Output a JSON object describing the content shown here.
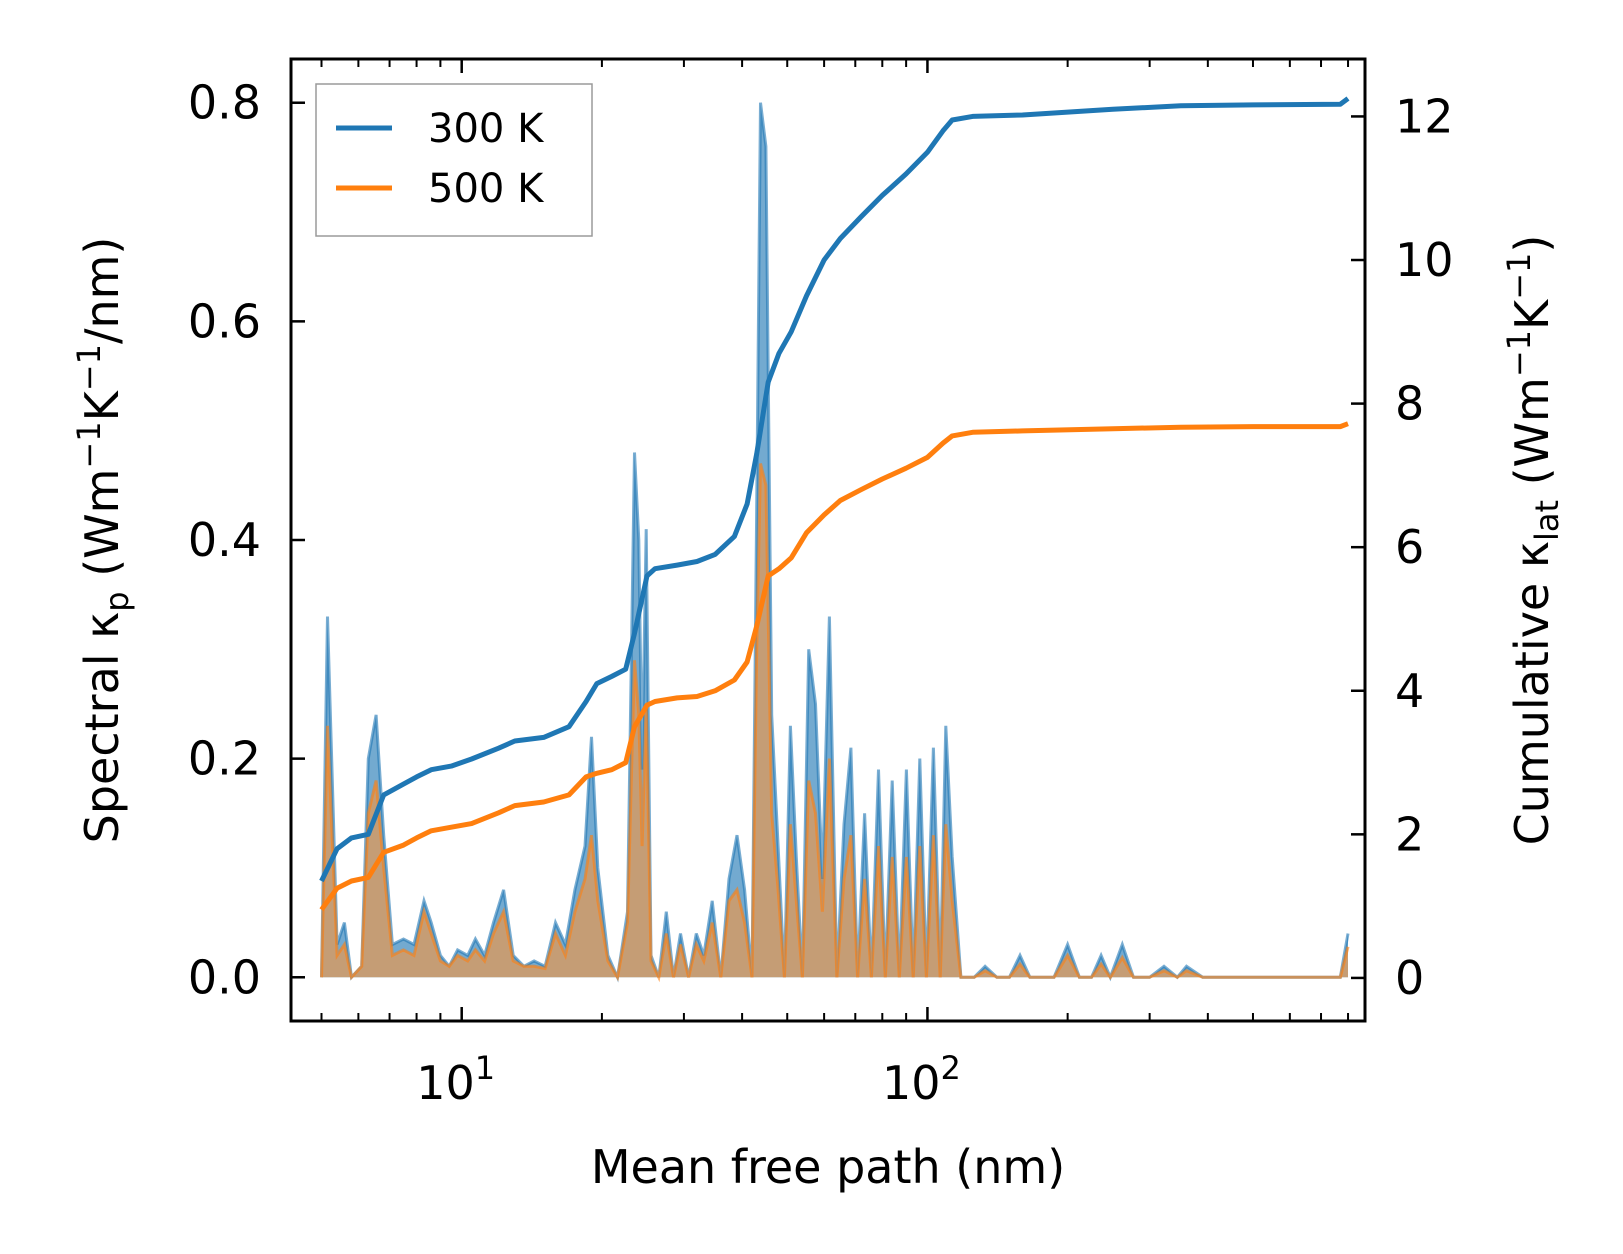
{
  "chart_data": {
    "type": "area",
    "xlabel": "Mean free path (nm)",
    "ylabel_left": "Spectral κ_p (Wm⁻¹K⁻¹/nm)",
    "ylabel_right": "Cumulative κ_lat (Wm⁻¹K⁻¹)",
    "x_scale": "log",
    "xlim": [
      4.3,
      870
    ],
    "ylim_left": [
      -0.04,
      0.84
    ],
    "ylim_right": [
      -0.6,
      12.8
    ],
    "x_major_ticks": [
      10,
      100
    ],
    "x_tick_labels": [
      "10^1",
      "10^2"
    ],
    "y_left_ticks": [
      "0.0",
      "0.2",
      "0.4",
      "0.6",
      "0.8"
    ],
    "y_right_ticks": [
      "0",
      "2",
      "4",
      "6",
      "8",
      "10",
      "12"
    ],
    "grid": false,
    "legend_position": "top-left",
    "colors": {
      "300 K": "#1f77b4",
      "500 K": "#ff7f0e",
      "300 K fill": "#5b9bc8",
      "500 K fill": "#d99a5e"
    },
    "series": [
      {
        "name": "300 K",
        "spectral": [
          [
            5.0,
            0.0
          ],
          [
            5.15,
            0.33
          ],
          [
            5.4,
            0.03
          ],
          [
            5.6,
            0.05
          ],
          [
            5.8,
            0.0
          ],
          [
            6.1,
            0.01
          ],
          [
            6.3,
            0.2
          ],
          [
            6.55,
            0.24
          ],
          [
            6.8,
            0.13
          ],
          [
            7.1,
            0.03
          ],
          [
            7.5,
            0.035
          ],
          [
            7.9,
            0.03
          ],
          [
            8.3,
            0.07
          ],
          [
            8.6,
            0.05
          ],
          [
            9.0,
            0.02
          ],
          [
            9.4,
            0.01
          ],
          [
            9.8,
            0.025
          ],
          [
            10.3,
            0.02
          ],
          [
            10.7,
            0.035
          ],
          [
            11.2,
            0.02
          ],
          [
            11.7,
            0.05
          ],
          [
            12.3,
            0.08
          ],
          [
            12.9,
            0.02
          ],
          [
            13.6,
            0.01
          ],
          [
            14.3,
            0.015
          ],
          [
            15.1,
            0.01
          ],
          [
            15.9,
            0.05
          ],
          [
            16.7,
            0.03
          ],
          [
            17.5,
            0.08
          ],
          [
            18.4,
            0.12
          ],
          [
            19.0,
            0.22
          ],
          [
            19.6,
            0.1
          ],
          [
            20.6,
            0.02
          ],
          [
            21.6,
            0.0
          ],
          [
            22.7,
            0.06
          ],
          [
            23.5,
            0.48
          ],
          [
            24.0,
            0.4
          ],
          [
            24.4,
            0.19
          ],
          [
            24.9,
            0.41
          ],
          [
            25.5,
            0.02
          ],
          [
            26.5,
            0.0
          ],
          [
            27.5,
            0.06
          ],
          [
            28.5,
            0.0
          ],
          [
            29.5,
            0.04
          ],
          [
            30.7,
            0.0
          ],
          [
            31.9,
            0.04
          ],
          [
            33.1,
            0.02
          ],
          [
            34.5,
            0.07
          ],
          [
            36.0,
            0.0
          ],
          [
            37.5,
            0.09
          ],
          [
            39.0,
            0.13
          ],
          [
            40.5,
            0.08
          ],
          [
            42.0,
            0.0
          ],
          [
            43.0,
            0.43
          ],
          [
            43.8,
            0.8
          ],
          [
            45.0,
            0.76
          ],
          [
            46.3,
            0.24
          ],
          [
            47.8,
            0.12
          ],
          [
            49.3,
            0.0
          ],
          [
            50.8,
            0.23
          ],
          [
            52.3,
            0.11
          ],
          [
            53.9,
            0.0
          ],
          [
            55.6,
            0.3
          ],
          [
            57.5,
            0.25
          ],
          [
            59.5,
            0.09
          ],
          [
            61.6,
            0.33
          ],
          [
            63.9,
            0.0
          ],
          [
            66.2,
            0.14
          ],
          [
            68.5,
            0.21
          ],
          [
            70.8,
            0.0
          ],
          [
            73.3,
            0.15
          ],
          [
            75.8,
            0.0
          ],
          [
            78.5,
            0.19
          ],
          [
            81.2,
            0.0
          ],
          [
            84.0,
            0.18
          ],
          [
            87.0,
            0.0
          ],
          [
            90.1,
            0.19
          ],
          [
            93.2,
            0.0
          ],
          [
            96.3,
            0.2
          ],
          [
            99.5,
            0.0
          ],
          [
            103.0,
            0.21
          ],
          [
            106.5,
            0.0
          ],
          [
            109.5,
            0.23
          ],
          [
            113.0,
            0.11
          ],
          [
            118.0,
            0.0
          ],
          [
            126.0,
            0.0
          ],
          [
            133.0,
            0.01
          ],
          [
            141.0,
            0.0
          ],
          [
            150.0,
            0.0
          ],
          [
            158.0,
            0.02
          ],
          [
            166.0,
            0.0
          ],
          [
            176.0,
            0.0
          ],
          [
            187.0,
            0.0
          ],
          [
            200.0,
            0.03
          ],
          [
            212.0,
            0.0
          ],
          [
            225.0,
            0.0
          ],
          [
            236.0,
            0.02
          ],
          [
            247.0,
            0.0
          ],
          [
            262.0,
            0.03
          ],
          [
            277.0,
            0.0
          ],
          [
            300.0,
            0.0
          ],
          [
            322.0,
            0.01
          ],
          [
            344.0,
            0.0
          ],
          [
            360.0,
            0.01
          ],
          [
            390.0,
            0.0
          ],
          [
            450.0,
            0.0
          ],
          [
            550.0,
            0.0
          ],
          [
            650.0,
            0.0
          ],
          [
            770.0,
            0.0
          ],
          [
            800.0,
            0.04
          ]
        ],
        "cumulative": [
          [
            5.0,
            1.35
          ],
          [
            5.4,
            1.8
          ],
          [
            5.8,
            1.95
          ],
          [
            6.3,
            2.0
          ],
          [
            6.8,
            2.55
          ],
          [
            7.5,
            2.7
          ],
          [
            8.0,
            2.8
          ],
          [
            8.6,
            2.9
          ],
          [
            9.5,
            2.95
          ],
          [
            10.5,
            3.05
          ],
          [
            12.0,
            3.2
          ],
          [
            13.0,
            3.3
          ],
          [
            15.0,
            3.35
          ],
          [
            17.0,
            3.5
          ],
          [
            18.5,
            3.85
          ],
          [
            19.5,
            4.1
          ],
          [
            21.0,
            4.2
          ],
          [
            22.5,
            4.3
          ],
          [
            23.5,
            4.8
          ],
          [
            25.0,
            5.6
          ],
          [
            26.0,
            5.7
          ],
          [
            29.0,
            5.75
          ],
          [
            32.0,
            5.8
          ],
          [
            35.0,
            5.9
          ],
          [
            38.5,
            6.15
          ],
          [
            41.0,
            6.6
          ],
          [
            43.0,
            7.3
          ],
          [
            45.5,
            8.3
          ],
          [
            48.0,
            8.7
          ],
          [
            51.0,
            9.0
          ],
          [
            55.0,
            9.5
          ],
          [
            60.0,
            10.0
          ],
          [
            65.0,
            10.3
          ],
          [
            72.0,
            10.6
          ],
          [
            80.0,
            10.9
          ],
          [
            90.0,
            11.2
          ],
          [
            100.0,
            11.5
          ],
          [
            108.0,
            11.8
          ],
          [
            113.0,
            11.95
          ],
          [
            125.0,
            12.0
          ],
          [
            160.0,
            12.02
          ],
          [
            250.0,
            12.1
          ],
          [
            350.0,
            12.15
          ],
          [
            500.0,
            12.16
          ],
          [
            770.0,
            12.17
          ],
          [
            800.0,
            12.25
          ]
        ]
      },
      {
        "name": "500 K",
        "spectral": [
          [
            5.0,
            0.0
          ],
          [
            5.15,
            0.23
          ],
          [
            5.4,
            0.02
          ],
          [
            5.6,
            0.03
          ],
          [
            5.8,
            0.0
          ],
          [
            6.1,
            0.01
          ],
          [
            6.3,
            0.15
          ],
          [
            6.55,
            0.18
          ],
          [
            6.8,
            0.1
          ],
          [
            7.1,
            0.02
          ],
          [
            7.5,
            0.025
          ],
          [
            7.9,
            0.02
          ],
          [
            8.3,
            0.06
          ],
          [
            8.6,
            0.04
          ],
          [
            9.0,
            0.015
          ],
          [
            9.4,
            0.01
          ],
          [
            9.8,
            0.02
          ],
          [
            10.3,
            0.015
          ],
          [
            10.7,
            0.025
          ],
          [
            11.2,
            0.015
          ],
          [
            11.7,
            0.04
          ],
          [
            12.3,
            0.06
          ],
          [
            12.9,
            0.015
          ],
          [
            13.6,
            0.01
          ],
          [
            14.3,
            0.01
          ],
          [
            15.1,
            0.008
          ],
          [
            15.9,
            0.04
          ],
          [
            16.7,
            0.02
          ],
          [
            17.5,
            0.06
          ],
          [
            18.4,
            0.09
          ],
          [
            19.0,
            0.13
          ],
          [
            19.6,
            0.07
          ],
          [
            20.6,
            0.015
          ],
          [
            21.6,
            0.0
          ],
          [
            22.7,
            0.05
          ],
          [
            23.5,
            0.29
          ],
          [
            24.0,
            0.24
          ],
          [
            24.4,
            0.12
          ],
          [
            24.9,
            0.25
          ],
          [
            25.5,
            0.015
          ],
          [
            26.5,
            0.0
          ],
          [
            27.5,
            0.04
          ],
          [
            28.5,
            0.0
          ],
          [
            29.5,
            0.03
          ],
          [
            30.7,
            0.0
          ],
          [
            31.9,
            0.03
          ],
          [
            33.1,
            0.015
          ],
          [
            34.5,
            0.05
          ],
          [
            36.0,
            0.0
          ],
          [
            37.5,
            0.07
          ],
          [
            39.0,
            0.08
          ],
          [
            40.5,
            0.05
          ],
          [
            42.0,
            0.0
          ],
          [
            43.0,
            0.3
          ],
          [
            43.8,
            0.47
          ],
          [
            45.0,
            0.45
          ],
          [
            46.3,
            0.15
          ],
          [
            47.8,
            0.08
          ],
          [
            49.3,
            0.0
          ],
          [
            50.8,
            0.14
          ],
          [
            52.3,
            0.07
          ],
          [
            53.9,
            0.0
          ],
          [
            55.6,
            0.18
          ],
          [
            57.5,
            0.15
          ],
          [
            59.5,
            0.06
          ],
          [
            61.6,
            0.2
          ],
          [
            63.9,
            0.0
          ],
          [
            66.2,
            0.09
          ],
          [
            68.5,
            0.13
          ],
          [
            70.8,
            0.0
          ],
          [
            73.3,
            0.09
          ],
          [
            75.8,
            0.0
          ],
          [
            78.5,
            0.12
          ],
          [
            81.2,
            0.0
          ],
          [
            84.0,
            0.11
          ],
          [
            87.0,
            0.0
          ],
          [
            90.1,
            0.11
          ],
          [
            93.2,
            0.0
          ],
          [
            96.3,
            0.12
          ],
          [
            99.5,
            0.0
          ],
          [
            103.0,
            0.13
          ],
          [
            106.5,
            0.0
          ],
          [
            109.5,
            0.14
          ],
          [
            113.0,
            0.07
          ],
          [
            118.0,
            0.0
          ],
          [
            126.0,
            0.0
          ],
          [
            133.0,
            0.006
          ],
          [
            141.0,
            0.0
          ],
          [
            150.0,
            0.0
          ],
          [
            158.0,
            0.012
          ],
          [
            166.0,
            0.0
          ],
          [
            176.0,
            0.0
          ],
          [
            187.0,
            0.0
          ],
          [
            200.0,
            0.02
          ],
          [
            212.0,
            0.0
          ],
          [
            225.0,
            0.0
          ],
          [
            236.0,
            0.012
          ],
          [
            247.0,
            0.0
          ],
          [
            262.0,
            0.018
          ],
          [
            277.0,
            0.0
          ],
          [
            300.0,
            0.0
          ],
          [
            322.0,
            0.006
          ],
          [
            344.0,
            0.0
          ],
          [
            360.0,
            0.006
          ],
          [
            390.0,
            0.0
          ],
          [
            450.0,
            0.0
          ],
          [
            550.0,
            0.0
          ],
          [
            650.0,
            0.0
          ],
          [
            770.0,
            0.0
          ],
          [
            800.0,
            0.028
          ]
        ],
        "cumulative": [
          [
            5.0,
            0.95
          ],
          [
            5.4,
            1.25
          ],
          [
            5.8,
            1.35
          ],
          [
            6.3,
            1.4
          ],
          [
            6.8,
            1.75
          ],
          [
            7.5,
            1.85
          ],
          [
            8.0,
            1.95
          ],
          [
            8.6,
            2.05
          ],
          [
            9.5,
            2.1
          ],
          [
            10.5,
            2.15
          ],
          [
            12.0,
            2.3
          ],
          [
            13.0,
            2.4
          ],
          [
            15.0,
            2.45
          ],
          [
            17.0,
            2.55
          ],
          [
            18.5,
            2.8
          ],
          [
            19.5,
            2.85
          ],
          [
            21.0,
            2.9
          ],
          [
            22.5,
            3.0
          ],
          [
            23.5,
            3.5
          ],
          [
            25.0,
            3.8
          ],
          [
            26.0,
            3.85
          ],
          [
            29.0,
            3.9
          ],
          [
            32.0,
            3.92
          ],
          [
            35.0,
            4.0
          ],
          [
            38.5,
            4.15
          ],
          [
            41.0,
            4.4
          ],
          [
            43.0,
            4.9
          ],
          [
            45.5,
            5.6
          ],
          [
            48.0,
            5.7
          ],
          [
            51.0,
            5.85
          ],
          [
            55.0,
            6.2
          ],
          [
            60.0,
            6.45
          ],
          [
            65.0,
            6.65
          ],
          [
            72.0,
            6.8
          ],
          [
            80.0,
            6.95
          ],
          [
            90.0,
            7.1
          ],
          [
            100.0,
            7.25
          ],
          [
            108.0,
            7.45
          ],
          [
            113.0,
            7.55
          ],
          [
            125.0,
            7.6
          ],
          [
            160.0,
            7.62
          ],
          [
            250.0,
            7.65
          ],
          [
            350.0,
            7.67
          ],
          [
            500.0,
            7.68
          ],
          [
            770.0,
            7.68
          ],
          [
            800.0,
            7.72
          ]
        ]
      }
    ]
  }
}
